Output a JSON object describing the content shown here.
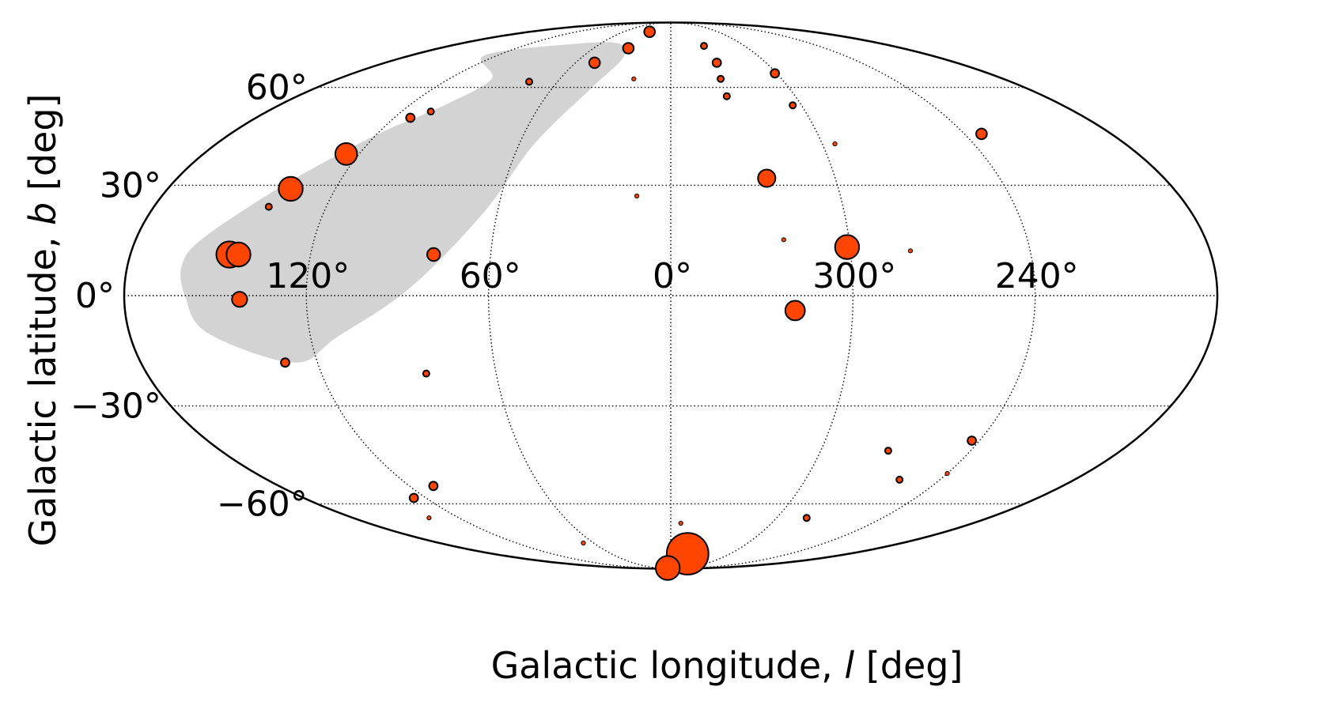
{
  "chart_data": {
    "type": "scatter",
    "projection": "mollweide",
    "xlabel": {
      "prefix": "Galactic longitude, ",
      "symbol": "l",
      "suffix": " [deg]"
    },
    "ylabel": {
      "prefix": "Galactic latitude, ",
      "symbol": "b",
      "suffix": " [deg]"
    },
    "x_ticks": [
      "120°",
      "60°",
      "0°",
      "300°",
      "240°"
    ],
    "x_tick_values": [
      120,
      60,
      0,
      300,
      240
    ],
    "y_ticks": [
      "60°",
      "30°",
      "0°",
      "−30°",
      "−60°"
    ],
    "y_tick_values": [
      60,
      30,
      0,
      -30,
      -60
    ],
    "x_direction": "longitude increases to the left",
    "xlim": [
      -180,
      180
    ],
    "ylim": [
      -90,
      90
    ],
    "grid": true,
    "legend": "none",
    "colors": {
      "marker_fill": "#FF4500",
      "marker_edge": "#000000",
      "region_fill": "#D3D3D3",
      "grid": "#000000"
    },
    "shaded_region": {
      "description": "grey region in the northern sky, upper left",
      "outline": [
        [
          129,
          72
        ],
        [
          97,
          63
        ],
        [
          104,
          54
        ],
        [
          118,
          46
        ],
        [
          129,
          38
        ],
        [
          142,
          28
        ],
        [
          158,
          15
        ],
        [
          162,
          8
        ],
        [
          160,
          0
        ],
        [
          154,
          -10
        ],
        [
          128,
          -18
        ],
        [
          111,
          -11
        ],
        [
          86,
          2
        ],
        [
          65,
          22
        ],
        [
          54,
          42
        ],
        [
          40,
          60
        ],
        [
          32,
          71
        ],
        [
          44,
          77
        ],
        [
          80,
          77
        ]
      ]
    },
    "points": [
      {
        "l": 27,
        "b": 83,
        "size": 4
      },
      {
        "l": 33,
        "b": 75,
        "size": 4
      },
      {
        "l": 48,
        "b": 69,
        "size": 4
      },
      {
        "l": 75,
        "b": 62,
        "size": 2
      },
      {
        "l": 107,
        "b": 52,
        "size": 2
      },
      {
        "l": 113,
        "b": 50,
        "size": 3
      },
      {
        "l": 125,
        "b": 39,
        "size": 9
      },
      {
        "l": 136,
        "b": 29,
        "size": 10
      },
      {
        "l": 140,
        "b": 24,
        "size": 2
      },
      {
        "l": 147,
        "b": 11,
        "size": 11
      },
      {
        "l": 144,
        "b": 11,
        "size": 10
      },
      {
        "l": 142,
        "b": -1,
        "size": 6
      },
      {
        "l": 79,
        "b": 11,
        "size": 5
      },
      {
        "l": 131,
        "b": -18,
        "size": 3
      },
      {
        "l": 84,
        "b": -21,
        "size": 2
      },
      {
        "l": 20,
        "b": 63,
        "size": 1
      },
      {
        "l": 12,
        "b": 27,
        "size": 1
      },
      {
        "l": 333,
        "b": 76,
        "size": 2
      },
      {
        "l": 331,
        "b": 69,
        "size": 3
      },
      {
        "l": 333,
        "b": 63,
        "size": 2
      },
      {
        "l": 333,
        "b": 57,
        "size": 2
      },
      {
        "l": 301,
        "b": 65,
        "size": 3
      },
      {
        "l": 304,
        "b": 54,
        "size": 2
      },
      {
        "l": 295,
        "b": 42,
        "size": 1
      },
      {
        "l": 325,
        "b": 32,
        "size": 7
      },
      {
        "l": 322,
        "b": 15,
        "size": 1
      },
      {
        "l": 301,
        "b": 13,
        "size": 10
      },
      {
        "l": 280,
        "b": 12,
        "size": 1
      },
      {
        "l": 319,
        "b": -4,
        "size": 8
      },
      {
        "l": 233,
        "b": 45,
        "size": 4
      },
      {
        "l": 243,
        "b": -40,
        "size": 3
      },
      {
        "l": 273,
        "b": -43,
        "size": 2
      },
      {
        "l": 258,
        "b": -52,
        "size": 2
      },
      {
        "l": 240,
        "b": -50,
        "size": 1
      },
      {
        "l": 283,
        "b": -65,
        "size": 2
      },
      {
        "l": 343,
        "b": -80,
        "size": 18
      },
      {
        "l": 354,
        "b": -67,
        "size": 1
      },
      {
        "l": 14,
        "b": -89,
        "size": 10
      },
      {
        "l": 68,
        "b": -75,
        "size": 1
      },
      {
        "l": 109,
        "b": -54,
        "size": 3
      },
      {
        "l": 126,
        "b": -58,
        "size": 3
      },
      {
        "l": 137,
        "b": -65,
        "size": 1
      }
    ]
  }
}
